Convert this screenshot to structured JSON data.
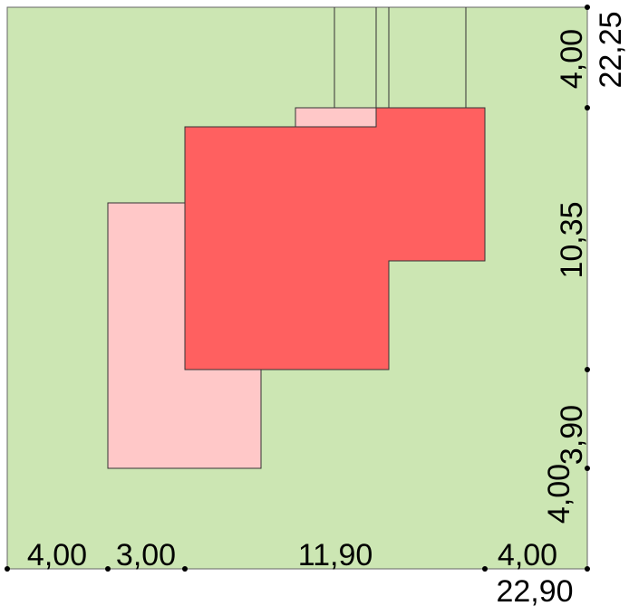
{
  "dimensions": {
    "bottom": [
      "4,00",
      "3,00",
      "11,90",
      "4,00"
    ],
    "bottom_total": "22,90",
    "right": [
      "4,00",
      "10,35",
      "3,90",
      "4,00"
    ],
    "right_total": "22,25"
  }
}
